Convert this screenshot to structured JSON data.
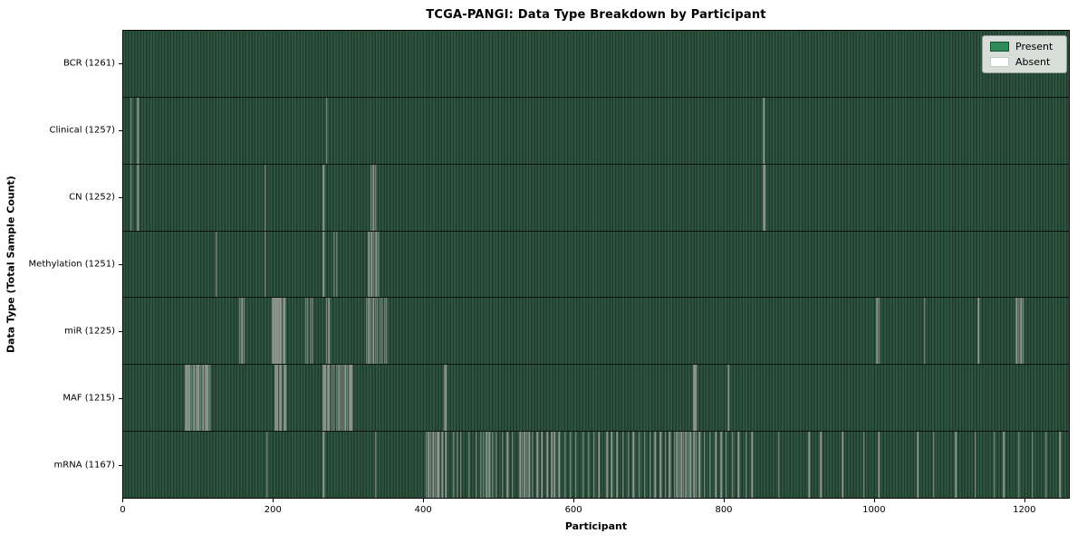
{
  "title": "TCGA-PANGI: Data Type Breakdown by Participant",
  "chart_data": {
    "type": "heatmap",
    "title": "TCGA-PANGI: Data Type Breakdown by Participant",
    "xlabel": "Participant",
    "ylabel": "Data Type (Total Sample Count)",
    "x_ticks": [
      0,
      200,
      400,
      600,
      800,
      1000,
      1200
    ],
    "x_range": [
      0,
      1261
    ],
    "total_participants": 1261,
    "grid": false,
    "legend": {
      "position": "upper right",
      "entries": [
        {
          "label": "Present",
          "color": "#2e8b57"
        },
        {
          "label": "Absent",
          "color": "#ffffff"
        }
      ]
    },
    "colors": {
      "present": "#2e8b57",
      "absent": "#ffffff",
      "present_rendered_light": "#2d5540",
      "present_rendered_dark": "#203a2b",
      "absent_rendered": "#8f978f"
    },
    "rows": [
      {
        "data_type": "BCR",
        "label": "BCR (1261)",
        "sample_count": 1261,
        "absent_participants": []
      },
      {
        "data_type": "Clinical",
        "label": "Clinical (1257)",
        "sample_count": 1257,
        "absent_participants": [
          10,
          19,
          271,
          854
        ]
      },
      {
        "data_type": "CN",
        "label": "CN (1252)",
        "sample_count": 1252,
        "absent_participants": [
          10,
          19,
          189,
          267,
          330,
          333,
          336,
          854,
          856
        ]
      },
      {
        "data_type": "Methylation",
        "label": "Methylation (1251)",
        "sample_count": 1251,
        "absent_participants": [
          124,
          189,
          267,
          281,
          284,
          327,
          331,
          334,
          337,
          340
        ]
      },
      {
        "data_type": "miR",
        "label": "miR (1225)",
        "sample_count": 1225,
        "absent_participants": [
          155,
          158,
          161,
          199,
          201,
          203,
          205,
          207,
          209,
          211,
          213,
          215,
          243,
          246,
          249,
          252,
          271,
          274,
          324,
          327,
          330,
          333,
          336,
          339,
          342,
          345,
          348,
          351,
          1005,
          1008,
          1068,
          1140,
          1191,
          1194,
          1197,
          1200
        ]
      },
      {
        "data_type": "MAF",
        "label": "MAF (1215)",
        "sample_count": 1215,
        "absent_participants": [
          83,
          85,
          86,
          88,
          91,
          94,
          97,
          98,
          100,
          103,
          106,
          109,
          110,
          112,
          115,
          203,
          205,
          208,
          209,
          211,
          214,
          215,
          217,
          267,
          269,
          272,
          273,
          275,
          278,
          281,
          284,
          287,
          288,
          290,
          293,
          296,
          299,
          302,
          303,
          305,
          428,
          430,
          761,
          763,
          806,
          807
        ]
      },
      {
        "data_type": "mRNA",
        "label": "mRNA (1167)",
        "sample_count": 1167,
        "absent_participants": [
          191,
          267,
          336,
          404,
          407,
          410,
          413,
          416,
          419,
          420,
          425,
          430,
          440,
          445,
          450,
          461,
          470,
          476,
          480,
          484,
          488,
          492,
          497,
          505,
          512,
          519,
          529,
          532,
          535,
          538,
          541,
          545,
          552,
          558,
          565,
          571,
          575,
          581,
          589,
          596,
          603,
          613,
          620,
          627,
          634,
          645,
          651,
          658,
          666,
          673,
          680,
          688,
          695,
          702,
          709,
          716,
          723,
          728,
          735,
          738,
          741,
          744,
          747,
          750,
          753,
          756,
          761,
          764,
          768,
          775,
          782,
          790,
          797,
          804,
          812,
          820,
          830,
          838,
          874,
          914,
          930,
          959,
          987,
          1007,
          1059,
          1080,
          1110,
          1136,
          1161,
          1174,
          1194,
          1212,
          1230,
          1249
        ]
      }
    ]
  }
}
